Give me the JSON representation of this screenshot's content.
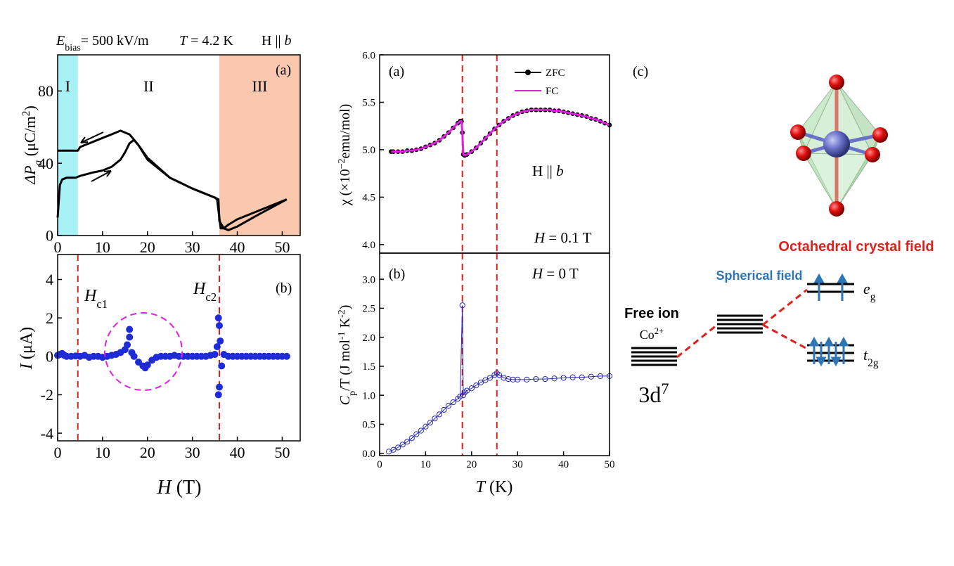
{
  "chart_data": [
    {
      "type": "line",
      "header": {
        "ebias": [
          "E",
          "bias",
          "= 500 kV/m"
        ],
        "temp": [
          "T",
          " = 4.2 K"
        ],
        "field": [
          "H || ",
          "b"
        ]
      },
      "panel_label": "(a)",
      "ylabel": [
        "ΔP",
        "a",
        " (μC/m",
        "2",
        ")"
      ],
      "xlim": [
        0,
        54
      ],
      "ylim": [
        0,
        100
      ],
      "xticks": [
        0,
        10,
        20,
        30,
        40,
        50
      ],
      "yticks": [
        0,
        40,
        80
      ],
      "regions": [
        {
          "label": "I",
          "from": 0,
          "to": 4.5,
          "color": "#a8f1f6"
        },
        {
          "label": "II",
          "from": 4.5,
          "to": 36
        },
        {
          "label": "III",
          "from": 36,
          "to": 54,
          "color": "#f9c8ae"
        }
      ],
      "series": [
        {
          "color": "#000000",
          "x": [
            0,
            0.5,
            1,
            2,
            4,
            5,
            8,
            10,
            12,
            14,
            15,
            16,
            17,
            18,
            20,
            25,
            30,
            35,
            35.8,
            36,
            37,
            38,
            40,
            45,
            51
          ],
          "values": [
            10,
            28,
            31,
            32,
            32,
            33,
            35,
            36,
            38,
            42,
            46,
            51,
            53,
            50,
            43,
            32,
            26,
            21,
            20,
            8,
            4,
            3,
            5,
            12,
            20
          ]
        },
        {
          "color": "#000000",
          "x": [
            51,
            45,
            40,
            38,
            37,
            36.3,
            36,
            35.5,
            35,
            30,
            25,
            20,
            18,
            16,
            14,
            12,
            10,
            8,
            6,
            5,
            4.5,
            0
          ],
          "values": [
            20,
            14,
            9,
            6,
            4,
            4,
            10,
            20,
            21,
            26,
            32,
            42,
            50,
            56,
            58,
            56,
            54,
            52,
            50,
            49,
            47,
            47
          ]
        }
      ]
    },
    {
      "type": "scatter",
      "panel_label": "(b)",
      "ylabel": [
        "I",
        " (μA)"
      ],
      "xlabel": [
        "H",
        " (T)"
      ],
      "annotations": {
        "hc1": [
          "H",
          "c1"
        ],
        "hc2": [
          "H",
          "c2"
        ]
      },
      "xlim": [
        0,
        54
      ],
      "ylim": [
        -4.4,
        5.3
      ],
      "xticks": [
        0,
        10,
        20,
        30,
        40,
        50
      ],
      "yticks": [
        -4,
        -2,
        0,
        2,
        4
      ],
      "vlines": [
        4.5,
        36
      ],
      "vline_color": "#e0201b",
      "series": [
        {
          "color": "#1f2bd6",
          "x": [
            0,
            0.5,
            1,
            1.5,
            2,
            3,
            4,
            5,
            6,
            7,
            8,
            9,
            10,
            11,
            12,
            13,
            14,
            15,
            15.5,
            16,
            16,
            16.5,
            17,
            18,
            19,
            19.5,
            20,
            21,
            22,
            23,
            24,
            25,
            26,
            27,
            28,
            29,
            30,
            31,
            32,
            33,
            34,
            35,
            35.5,
            35.8,
            35.8,
            36,
            36,
            36.2,
            36.5,
            37,
            38,
            39,
            40,
            41,
            42,
            43,
            44,
            45,
            46,
            47,
            48,
            49,
            50,
            51
          ],
          "values": [
            0.05,
            0.1,
            0.15,
            0.05,
            0,
            0,
            0.02,
            0,
            0.05,
            -0.05,
            0,
            0,
            -0.05,
            0,
            0.05,
            0.1,
            0.2,
            0.35,
            0.6,
            1.4,
            1.0,
            0.2,
            0,
            -0.3,
            -0.5,
            -0.6,
            -0.45,
            -0.2,
            -0.05,
            0,
            0,
            0,
            0.05,
            0,
            0,
            0,
            0,
            0,
            0,
            0,
            0.05,
            0.1,
            0.5,
            2.0,
            -2.0,
            1.6,
            -1.6,
            0.8,
            -0.5,
            0.1,
            0,
            0,
            0,
            0,
            0,
            0,
            0,
            0,
            0,
            0,
            0,
            0,
            0,
            0
          ]
        }
      ]
    },
    {
      "type": "line",
      "panel_label": "(a)",
      "ylabel": [
        "χ (×10",
        "−2",
        "emu/mol)"
      ],
      "notes": {
        "field": [
          "H || ",
          "b"
        ],
        "h": [
          "H",
          " = 0.1 T"
        ]
      },
      "xlim": [
        0,
        50
      ],
      "ylim": [
        3.91,
        6.0
      ],
      "yticks": [
        {
          "value": 4.0,
          "label": "4.0"
        },
        4.5,
        {
          "value": 5.0,
          "label": "5.0"
        },
        5.5,
        {
          "value": 6.0,
          "label": "6.0"
        }
      ],
      "vlines": [
        18,
        25.5
      ],
      "vline_color": "#e0201b",
      "legend": "upper right",
      "series": [
        {
          "name": "ZFC",
          "color": "#000000",
          "marker": "dot",
          "x": [
            2.5,
            3,
            4,
            5,
            6,
            7,
            8,
            9,
            10,
            11,
            12,
            13,
            14,
            15,
            16,
            17,
            17.5,
            17.8,
            18,
            18.2,
            18.5,
            19,
            20,
            21,
            22,
            23,
            24,
            25,
            26,
            27,
            28,
            29,
            30,
            31,
            32,
            33,
            34,
            35,
            36,
            37,
            38,
            39,
            40,
            41,
            42,
            43,
            44,
            45,
            46,
            47,
            48,
            49,
            50
          ],
          "values": [
            4.98,
            4.98,
            4.98,
            4.98,
            4.99,
            4.99,
            5.0,
            5.01,
            5.03,
            5.05,
            5.07,
            5.1,
            5.14,
            5.18,
            5.23,
            5.28,
            5.3,
            5.3,
            5.18,
            4.95,
            4.94,
            4.95,
            4.98,
            5.02,
            5.07,
            5.12,
            5.17,
            5.22,
            5.26,
            5.3,
            5.33,
            5.36,
            5.38,
            5.4,
            5.41,
            5.42,
            5.42,
            5.42,
            5.42,
            5.42,
            5.41,
            5.41,
            5.4,
            5.39,
            5.38,
            5.37,
            5.36,
            5.35,
            5.33,
            5.32,
            5.3,
            5.28,
            5.26
          ]
        },
        {
          "name": "FC",
          "color": "#e020e0",
          "x": [
            2.5,
            3,
            4,
            5,
            6,
            7,
            8,
            9,
            10,
            11,
            12,
            13,
            14,
            15,
            16,
            17,
            17.5,
            17.8,
            18,
            18.2,
            18.5,
            19,
            20,
            21,
            22,
            23,
            24,
            25,
            26,
            27,
            28,
            29,
            30,
            31,
            32,
            33,
            34,
            35,
            36,
            37,
            38,
            39,
            40,
            41,
            42,
            43,
            44,
            45,
            46,
            47,
            48,
            49,
            50
          ],
          "values": [
            4.98,
            4.98,
            4.98,
            4.98,
            4.99,
            4.99,
            5.0,
            5.01,
            5.03,
            5.05,
            5.07,
            5.1,
            5.14,
            5.18,
            5.23,
            5.28,
            5.3,
            5.3,
            5.18,
            4.95,
            4.94,
            4.95,
            4.98,
            5.02,
            5.07,
            5.12,
            5.17,
            5.22,
            5.26,
            5.3,
            5.33,
            5.36,
            5.38,
            5.4,
            5.41,
            5.42,
            5.42,
            5.42,
            5.42,
            5.42,
            5.41,
            5.41,
            5.4,
            5.39,
            5.38,
            5.37,
            5.36,
            5.35,
            5.33,
            5.32,
            5.3,
            5.28,
            5.26
          ]
        }
      ]
    },
    {
      "type": "scatter",
      "panel_label": "(b)",
      "ylabel": [
        "C",
        "p",
        "/T (J mol",
        "-1",
        " K",
        "-2",
        ")"
      ],
      "xlabel": [
        "T",
        " (K)"
      ],
      "notes": {
        "h": [
          "H",
          " = 0 T"
        ]
      },
      "xlim": [
        0,
        50
      ],
      "ylim": [
        -0.04,
        3.45
      ],
      "xticks": [
        0,
        10,
        20,
        30,
        40,
        50
      ],
      "yticks": [
        {
          "value": 0.0,
          "label": "0.0"
        },
        0.5,
        {
          "value": 1.0,
          "label": "1.0"
        },
        1.5,
        {
          "value": 2.0,
          "label": "2.0"
        },
        2.5,
        {
          "value": 3.0,
          "label": "3.0"
        }
      ],
      "vlines": [
        18,
        25.5
      ],
      "vline_color": "#e0201b",
      "series": [
        {
          "color": "#2a2ab0",
          "connected": true,
          "x": [
            2,
            3,
            4,
            5,
            6,
            7,
            8,
            9,
            10,
            11,
            12,
            13,
            14,
            15,
            16,
            17,
            17.5,
            18,
            18.2,
            18.5,
            19,
            20,
            21,
            22,
            23,
            24,
            25,
            25.5,
            26,
            27,
            28,
            29,
            30,
            32,
            34,
            36,
            38,
            40,
            42,
            44,
            46,
            48,
            50
          ],
          "values": [
            0.03,
            0.06,
            0.1,
            0.15,
            0.2,
            0.26,
            0.33,
            0.39,
            0.46,
            0.53,
            0.6,
            0.67,
            0.75,
            0.82,
            0.88,
            0.94,
            0.98,
            2.55,
            1.0,
            1.05,
            1.08,
            1.12,
            1.17,
            1.22,
            1.26,
            1.3,
            1.35,
            1.38,
            1.35,
            1.3,
            1.28,
            1.27,
            1.27,
            1.27,
            1.28,
            1.28,
            1.29,
            1.3,
            1.31,
            1.31,
            1.32,
            1.33,
            1.33
          ]
        }
      ]
    }
  ],
  "diagram": {
    "panel_label": "(c)",
    "octahedral": "Octahedral crystal field",
    "spherical": "Spherical field",
    "free_ion": "Free ion",
    "ion": [
      "Co",
      "2+"
    ],
    "config": [
      "3d",
      "7"
    ],
    "eg": [
      "e",
      "g"
    ],
    "t2g": [
      "t",
      "2g"
    ]
  }
}
